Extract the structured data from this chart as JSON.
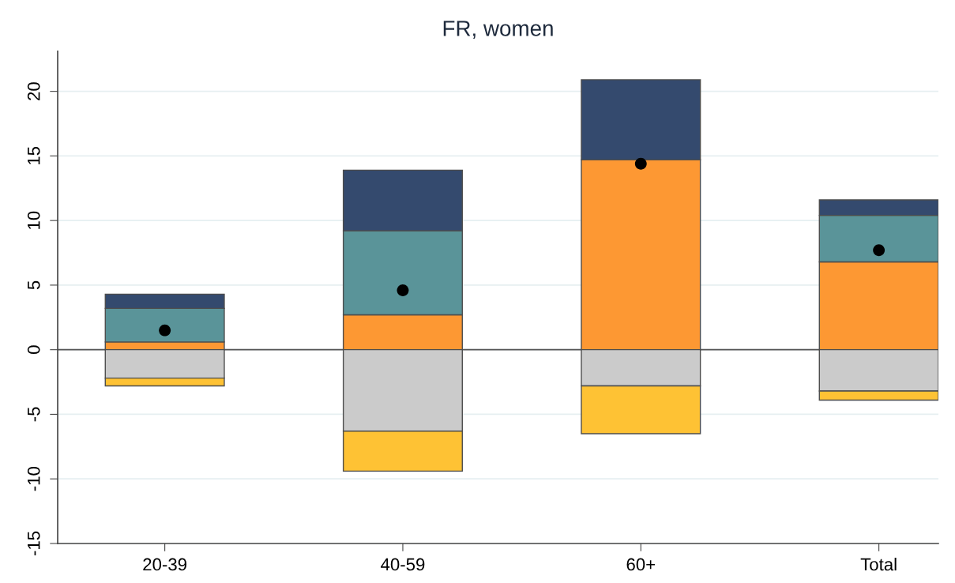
{
  "chart_data": {
    "type": "bar",
    "title": "FR, women",
    "categories": [
      "20-39",
      "40-59",
      "60+",
      "Total"
    ],
    "stacked": true,
    "series": [
      {
        "color": "#fd9833",
        "values": [
          0.6,
          2.7,
          14.7,
          6.8
        ]
      },
      {
        "color": "#5a9499",
        "values": [
          2.6,
          6.5,
          null,
          3.6
        ]
      },
      {
        "color": "#344a6e",
        "values": [
          1.1,
          4.7,
          6.2,
          1.2
        ]
      },
      {
        "color": "#cbcbcb",
        "values": [
          -2.2,
          -6.3,
          -2.8,
          -3.2
        ]
      },
      {
        "color": "#fec234",
        "values": [
          -0.6,
          -3.1,
          -3.7,
          -0.7
        ]
      },
      {
        "type": "scatter",
        "color": "#000000",
        "marker": "circle",
        "x": [
          "20-39",
          "40-59",
          "60+",
          "Total"
        ],
        "values": [
          1.5,
          4.6,
          14.4,
          7.7
        ]
      }
    ],
    "ylim": [
      -15,
      23.1
    ],
    "yticks": [
      -15,
      -10,
      -5,
      0,
      5,
      10,
      15,
      20
    ],
    "grid": "y",
    "ref_lines": [
      {
        "axis": "y",
        "value": 0,
        "color": "#555555"
      }
    ]
  }
}
